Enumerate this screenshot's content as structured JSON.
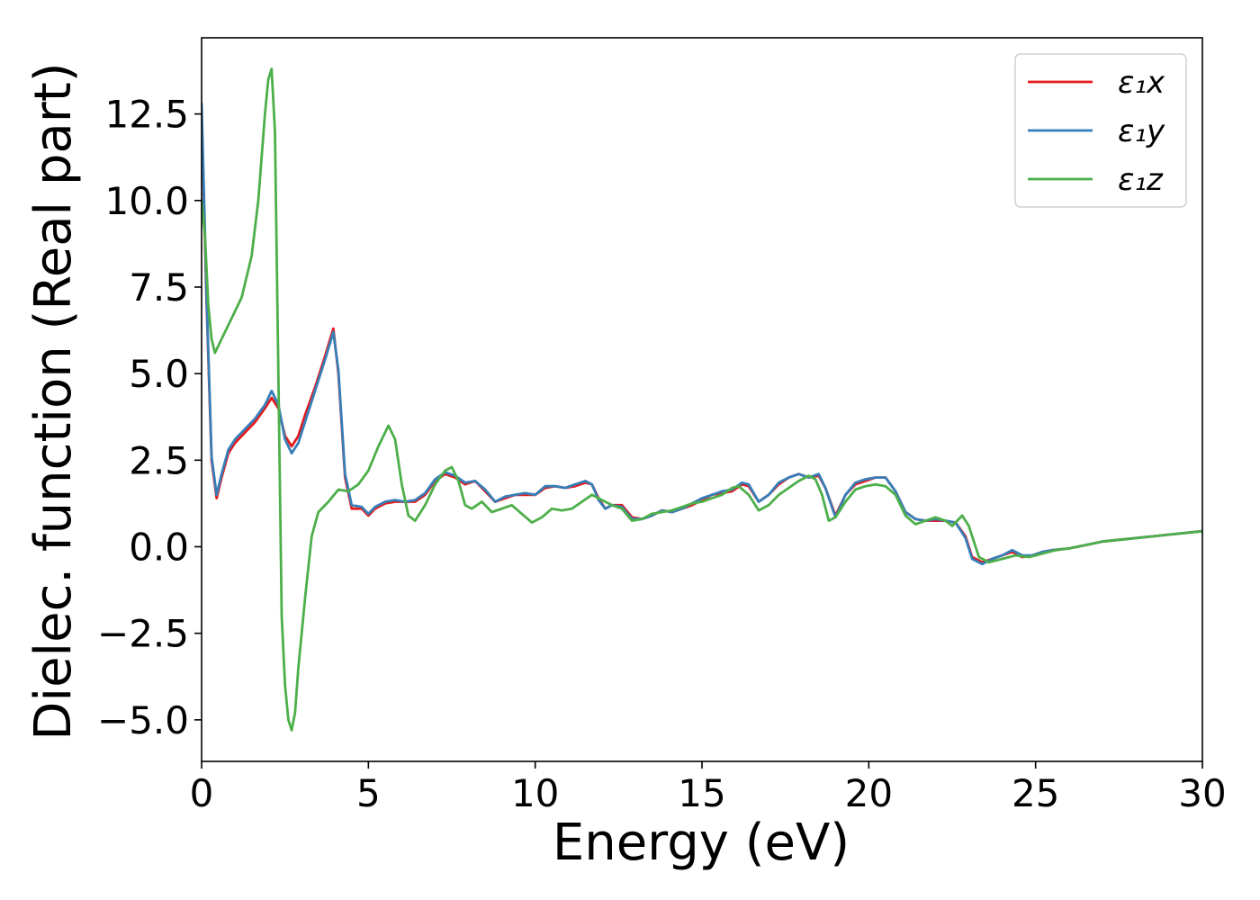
{
  "chart_data": {
    "type": "line",
    "xlabel": "Energy (eV)",
    "ylabel": "Dielec. function (Real part)",
    "xlim": [
      0,
      30
    ],
    "ylim": [
      -6.2,
      14.7
    ],
    "xticks": [
      0,
      5,
      10,
      15,
      20,
      25,
      30
    ],
    "xtick_labels": [
      "0",
      "5",
      "10",
      "15",
      "20",
      "25",
      "30"
    ],
    "yticks": [
      -5.0,
      -2.5,
      0.0,
      2.5,
      5.0,
      7.5,
      10.0,
      12.5
    ],
    "ytick_labels": [
      "−5.0",
      "−2.5",
      "0.0",
      "2.5",
      "5.0",
      "7.5",
      "10.0",
      "12.5"
    ],
    "grid": false,
    "legend_position": "top-right",
    "series": [
      {
        "name": "ε₁x",
        "color": "#e41a1c",
        "x": [
          0.0,
          0.15,
          0.3,
          0.45,
          0.6,
          0.8,
          1.0,
          1.3,
          1.6,
          1.9,
          2.1,
          2.3,
          2.5,
          2.7,
          2.9,
          3.1,
          3.4,
          3.7,
          3.95,
          4.1,
          4.3,
          4.5,
          4.8,
          5.0,
          5.2,
          5.5,
          5.8,
          6.1,
          6.4,
          6.7,
          7.0,
          7.3,
          7.6,
          7.9,
          8.2,
          8.5,
          8.8,
          9.1,
          9.4,
          9.7,
          10.0,
          10.3,
          10.6,
          10.9,
          11.2,
          11.5,
          11.7,
          11.9,
          12.1,
          12.3,
          12.6,
          12.9,
          13.2,
          13.5,
          13.8,
          14.1,
          14.4,
          14.7,
          15.0,
          15.3,
          15.6,
          15.9,
          16.2,
          16.4,
          16.7,
          17.0,
          17.3,
          17.6,
          17.9,
          18.2,
          18.5,
          18.7,
          19.0,
          19.3,
          19.6,
          19.9,
          20.2,
          20.5,
          20.8,
          21.1,
          21.4,
          21.7,
          22.0,
          22.3,
          22.6,
          22.9,
          23.1,
          23.4,
          23.7,
          24.0,
          24.3,
          24.6,
          24.9,
          25.2,
          25.5,
          26.0,
          26.5,
          27.0,
          27.5,
          28.0,
          28.5,
          29.0,
          29.5,
          30.0
        ],
        "y": [
          12.6,
          7.0,
          2.5,
          1.4,
          2.0,
          2.7,
          3.0,
          3.3,
          3.6,
          4.0,
          4.3,
          4.0,
          3.2,
          2.9,
          3.2,
          3.8,
          4.6,
          5.5,
          6.3,
          5.0,
          2.0,
          1.1,
          1.1,
          0.9,
          1.1,
          1.25,
          1.3,
          1.3,
          1.3,
          1.5,
          1.9,
          2.1,
          2.0,
          1.8,
          1.9,
          1.6,
          1.3,
          1.4,
          1.5,
          1.5,
          1.5,
          1.7,
          1.75,
          1.7,
          1.75,
          1.85,
          1.8,
          1.4,
          1.1,
          1.2,
          1.2,
          0.85,
          0.8,
          0.9,
          1.05,
          1.0,
          1.1,
          1.2,
          1.35,
          1.5,
          1.55,
          1.6,
          1.8,
          1.75,
          1.3,
          1.5,
          1.8,
          2.0,
          2.1,
          2.0,
          2.05,
          1.7,
          0.9,
          1.5,
          1.8,
          1.9,
          2.0,
          2.0,
          1.6,
          1.0,
          0.8,
          0.75,
          0.75,
          0.75,
          0.7,
          0.3,
          -0.3,
          -0.45,
          -0.35,
          -0.25,
          -0.15,
          -0.3,
          -0.25,
          -0.15,
          -0.1,
          -0.05,
          0.05,
          0.15,
          0.2,
          0.25,
          0.3,
          0.35,
          0.4,
          0.45
        ]
      },
      {
        "name": "ε₁y",
        "color": "#377eb8",
        "x": [
          0.0,
          0.15,
          0.3,
          0.45,
          0.6,
          0.8,
          1.0,
          1.3,
          1.6,
          1.9,
          2.1,
          2.3,
          2.5,
          2.7,
          2.9,
          3.1,
          3.4,
          3.7,
          3.95,
          4.1,
          4.3,
          4.5,
          4.8,
          5.0,
          5.2,
          5.5,
          5.8,
          6.1,
          6.4,
          6.7,
          7.0,
          7.3,
          7.6,
          7.9,
          8.2,
          8.5,
          8.8,
          9.1,
          9.4,
          9.7,
          10.0,
          10.3,
          10.6,
          10.9,
          11.2,
          11.5,
          11.7,
          11.9,
          12.1,
          12.3,
          12.6,
          12.9,
          13.2,
          13.5,
          13.8,
          14.1,
          14.4,
          14.7,
          15.0,
          15.3,
          15.6,
          15.9,
          16.2,
          16.4,
          16.7,
          17.0,
          17.3,
          17.6,
          17.9,
          18.2,
          18.5,
          18.7,
          19.0,
          19.3,
          19.6,
          19.9,
          20.2,
          20.5,
          20.8,
          21.1,
          21.4,
          21.7,
          22.0,
          22.3,
          22.6,
          22.9,
          23.1,
          23.4,
          23.7,
          24.0,
          24.3,
          24.6,
          24.9,
          25.2,
          25.5,
          26.0,
          26.5,
          27.0,
          27.5,
          28.0,
          28.5,
          29.0,
          29.5,
          30.0
        ],
        "y": [
          12.8,
          7.2,
          2.6,
          1.5,
          2.1,
          2.8,
          3.1,
          3.4,
          3.7,
          4.1,
          4.5,
          4.1,
          3.1,
          2.7,
          3.0,
          3.6,
          4.5,
          5.4,
          6.2,
          5.1,
          2.1,
          1.2,
          1.15,
          0.95,
          1.15,
          1.3,
          1.35,
          1.3,
          1.35,
          1.55,
          1.95,
          2.15,
          2.05,
          1.85,
          1.9,
          1.65,
          1.3,
          1.45,
          1.5,
          1.55,
          1.5,
          1.75,
          1.75,
          1.7,
          1.8,
          1.9,
          1.8,
          1.35,
          1.1,
          1.2,
          1.15,
          0.8,
          0.8,
          0.9,
          1.05,
          1.0,
          1.1,
          1.25,
          1.4,
          1.5,
          1.6,
          1.65,
          1.85,
          1.8,
          1.3,
          1.5,
          1.85,
          2.0,
          2.1,
          2.0,
          2.1,
          1.7,
          0.85,
          1.5,
          1.85,
          1.95,
          2.0,
          2.0,
          1.6,
          1.0,
          0.8,
          0.75,
          0.8,
          0.75,
          0.7,
          0.25,
          -0.35,
          -0.5,
          -0.35,
          -0.25,
          -0.1,
          -0.25,
          -0.25,
          -0.15,
          -0.1,
          -0.05,
          0.05,
          0.15,
          0.2,
          0.25,
          0.3,
          0.35,
          0.4,
          0.45
        ]
      },
      {
        "name": "ε₁z",
        "color": "#4daf4a",
        "x": [
          0.0,
          0.1,
          0.2,
          0.3,
          0.4,
          0.6,
          0.9,
          1.2,
          1.5,
          1.7,
          1.9,
          2.0,
          2.1,
          2.2,
          2.3,
          2.4,
          2.5,
          2.6,
          2.7,
          2.8,
          2.9,
          3.1,
          3.3,
          3.5,
          3.8,
          4.1,
          4.4,
          4.7,
          5.0,
          5.3,
          5.6,
          5.8,
          6.0,
          6.2,
          6.4,
          6.7,
          7.0,
          7.3,
          7.5,
          7.7,
          7.9,
          8.1,
          8.4,
          8.7,
          9.0,
          9.3,
          9.6,
          9.9,
          10.2,
          10.5,
          10.8,
          11.1,
          11.4,
          11.7,
          12.0,
          12.3,
          12.6,
          12.9,
          13.2,
          13.5,
          13.8,
          14.1,
          14.4,
          14.7,
          15.0,
          15.3,
          15.6,
          15.9,
          16.1,
          16.4,
          16.7,
          17.0,
          17.3,
          17.6,
          17.9,
          18.2,
          18.4,
          18.6,
          18.8,
          19.0,
          19.3,
          19.6,
          19.9,
          20.2,
          20.5,
          20.8,
          21.1,
          21.4,
          21.7,
          22.0,
          22.3,
          22.5,
          22.8,
          23.0,
          23.3,
          23.6,
          24.0,
          24.4,
          24.8,
          25.2,
          25.6,
          26.0,
          26.5,
          27.0,
          27.5,
          28.0,
          28.5,
          29.0,
          29.5,
          30.0
        ],
        "y": [
          10.0,
          9.0,
          7.0,
          6.0,
          5.6,
          6.0,
          6.6,
          7.2,
          8.4,
          10.0,
          12.5,
          13.5,
          13.8,
          12.0,
          5.0,
          -2.0,
          -4.0,
          -5.0,
          -5.3,
          -4.8,
          -3.5,
          -1.5,
          0.3,
          1.0,
          1.3,
          1.65,
          1.6,
          1.8,
          2.2,
          2.9,
          3.5,
          3.1,
          1.8,
          0.9,
          0.75,
          1.2,
          1.8,
          2.2,
          2.3,
          1.9,
          1.2,
          1.1,
          1.3,
          1.0,
          1.1,
          1.2,
          0.95,
          0.7,
          0.85,
          1.1,
          1.05,
          1.1,
          1.3,
          1.5,
          1.35,
          1.2,
          1.1,
          0.75,
          0.8,
          0.95,
          1.0,
          1.05,
          1.15,
          1.25,
          1.3,
          1.4,
          1.5,
          1.7,
          1.75,
          1.5,
          1.05,
          1.2,
          1.5,
          1.7,
          1.9,
          2.05,
          1.95,
          1.5,
          0.75,
          0.85,
          1.3,
          1.65,
          1.75,
          1.8,
          1.75,
          1.5,
          0.9,
          0.65,
          0.75,
          0.85,
          0.75,
          0.6,
          0.9,
          0.6,
          -0.3,
          -0.45,
          -0.35,
          -0.25,
          -0.3,
          -0.2,
          -0.1,
          -0.05,
          0.05,
          0.15,
          0.2,
          0.25,
          0.3,
          0.35,
          0.4,
          0.45
        ]
      }
    ]
  }
}
